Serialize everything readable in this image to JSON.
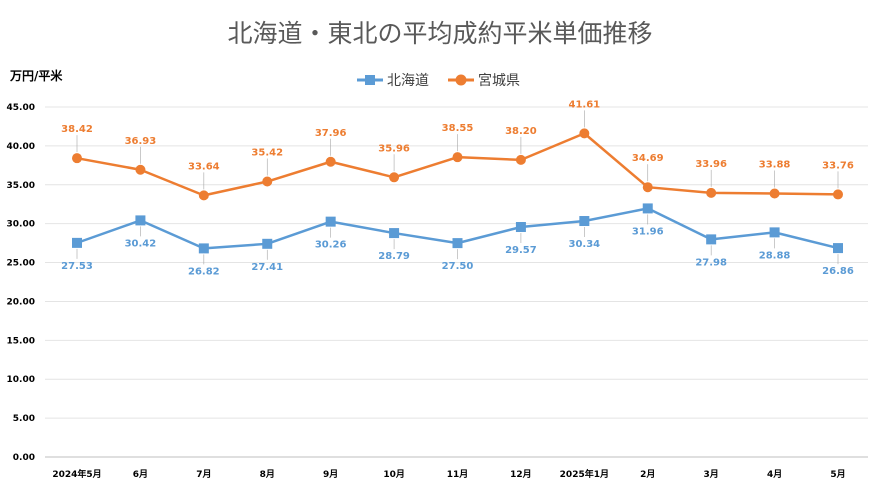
{
  "chart_data": {
    "type": "line",
    "title": "北海道・東北の平均成約平米単価推移",
    "ylabel": "万円/平米",
    "xlabel": "",
    "categories": [
      "2024年5月",
      "6月",
      "7月",
      "8月",
      "9月",
      "10月",
      "11月",
      "12月",
      "2025年1月",
      "2月",
      "3月",
      "4月",
      "5月"
    ],
    "ylim": [
      0,
      45
    ],
    "yticks": [
      "0.00",
      "5.00",
      "10.00",
      "15.00",
      "20.00",
      "25.00",
      "30.00",
      "35.00",
      "40.00",
      "45.00"
    ],
    "grid": true,
    "legend_position": "top-center",
    "series": [
      {
        "name": "北海道",
        "color": "#5B9BD5",
        "marker": "square",
        "values": [
          27.53,
          30.42,
          26.82,
          27.41,
          30.26,
          28.79,
          27.5,
          29.57,
          30.34,
          31.96,
          27.98,
          28.88,
          26.86
        ],
        "labels": [
          "27.53",
          "30.42",
          "26.82",
          "27.41",
          "30.26",
          "28.79",
          "27.50",
          "29.57",
          "30.34",
          "31.96",
          "27.98",
          "28.88",
          "26.86"
        ]
      },
      {
        "name": "宮城県",
        "color": "#ED7D31",
        "marker": "circle",
        "values": [
          38.42,
          36.93,
          33.64,
          35.42,
          37.96,
          35.96,
          38.55,
          38.2,
          41.61,
          34.69,
          33.96,
          33.88,
          33.76
        ],
        "labels": [
          "38.42",
          "36.93",
          "33.64",
          "35.42",
          "37.96",
          "35.96",
          "38.55",
          "38.20",
          "41.61",
          "34.69",
          "33.96",
          "33.88",
          "33.76"
        ]
      }
    ]
  }
}
